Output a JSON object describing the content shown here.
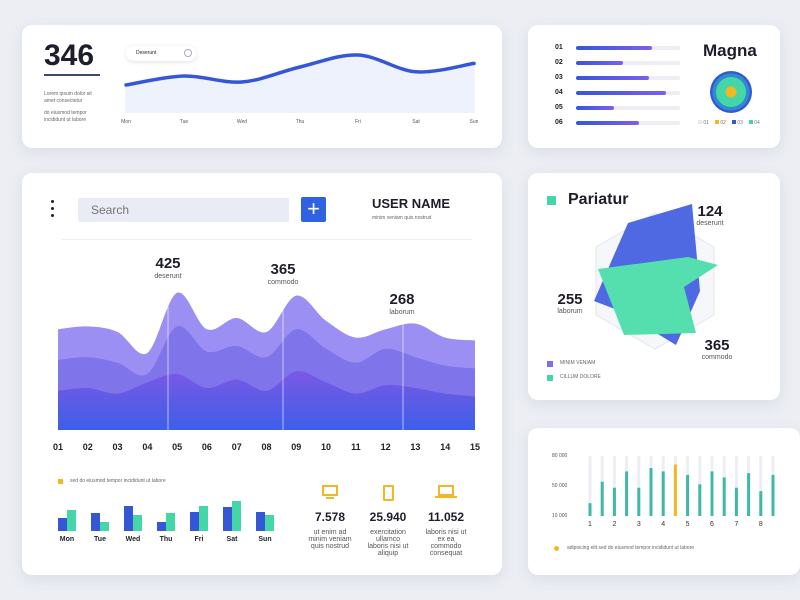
{
  "colors": {
    "blue": "#3557d6",
    "purple": "#7a6ff0",
    "green": "#45d6a8",
    "yellow": "#f2b824",
    "track": "#eceef4"
  },
  "top_left": {
    "value": "346",
    "desc1": "Lorem ipsum dolor sit amet consectetur",
    "desc2": "do eiusmod tempor incididunt ut labore",
    "pill": "Deserunt",
    "days": [
      "Mon",
      "Tue",
      "Wed",
      "Thu",
      "Fri",
      "Sat",
      "Sun"
    ],
    "line_values": [
      30,
      45,
      35,
      60,
      80,
      52,
      66
    ]
  },
  "top_right": {
    "title": "Magna",
    "rows": [
      {
        "label": "01",
        "fill": 0.73
      },
      {
        "label": "02",
        "fill": 0.45
      },
      {
        "label": "03",
        "fill": 0.7
      },
      {
        "label": "04",
        "fill": 0.87
      },
      {
        "label": "05",
        "fill": 0.37
      },
      {
        "label": "06",
        "fill": 0.61
      }
    ],
    "legend": [
      {
        "label": "01",
        "color": "#e6e8ef"
      },
      {
        "label": "02",
        "color": "#f2b824"
      },
      {
        "label": "03",
        "color": "#3557d6"
      },
      {
        "label": "04",
        "color": "#45d6a8"
      }
    ]
  },
  "main": {
    "search_placeholder": "Search",
    "add_label": "+",
    "user_name": "USER NAME",
    "user_sub": "minim veniam quis nostrud",
    "peaks": [
      {
        "value": "425",
        "label": "deserunt"
      },
      {
        "value": "365",
        "label": "commodo"
      },
      {
        "value": "268",
        "label": "laborum"
      }
    ],
    "x_labels": [
      "01",
      "02",
      "03",
      "04",
      "05",
      "06",
      "07",
      "08",
      "09",
      "10",
      "11",
      "12",
      "13",
      "14",
      "15"
    ],
    "area_layers": [
      [
        72,
        74,
        70,
        55,
        98,
        72,
        80,
        70,
        96,
        78,
        66,
        72,
        76,
        66,
        64
      ],
      [
        50,
        52,
        48,
        40,
        74,
        56,
        60,
        52,
        72,
        58,
        48,
        58,
        52,
        46,
        44
      ],
      [
        28,
        30,
        26,
        34,
        40,
        30,
        36,
        28,
        42,
        34,
        26,
        32,
        30,
        26,
        24
      ]
    ],
    "legend_text": "sed do eiusmod tempor incididunt ut labore",
    "week_bars": {
      "days": [
        "Mon",
        "Tue",
        "Wed",
        "Thu",
        "Fri",
        "Sat",
        "Sun"
      ],
      "blue": [
        0.45,
        0.6,
        0.85,
        0.3,
        0.65,
        0.8,
        0.65
      ],
      "green": [
        0.7,
        0.3,
        0.55,
        0.6,
        0.85,
        1.0,
        0.55
      ]
    },
    "stats": [
      {
        "icon": "monitor-icon",
        "value": "7.578",
        "desc": "ut enim ad minim veniam quis nostrud"
      },
      {
        "icon": "tablet-icon",
        "value": "25.940",
        "desc": "exercitation ullamco laboris nisi ut aliquip"
      },
      {
        "icon": "laptop-icon",
        "value": "11.052",
        "desc": "laboris nisi ut ex ea commodo consequat"
      }
    ]
  },
  "radar": {
    "title": "Pariatur",
    "labels": [
      {
        "value": "124",
        "label": "deserunt"
      },
      {
        "value": "255",
        "label": "laborum"
      },
      {
        "value": "365",
        "label": "commodo"
      }
    ],
    "legend": [
      {
        "label": "MINIM VENIAM",
        "color": "#7a6ff0"
      },
      {
        "label": "CILLUM DOLORE",
        "color": "#45d6a8"
      }
    ]
  },
  "bar_chart": {
    "y_ticks": [
      "80 000",
      "50 000",
      "10 000"
    ],
    "x_labels": [
      "1",
      "2",
      "3",
      "4",
      "5",
      "6",
      "7",
      "8"
    ],
    "values": [
      25000,
      50000,
      43000,
      62000,
      43000,
      66000,
      62000,
      70000,
      58000,
      47000,
      62000,
      55000,
      43000,
      60000,
      39000,
      58000
    ],
    "highlight_index": 7,
    "ylim": [
      10000,
      80000
    ],
    "legend_text": "adipiscing elit sed do eiusmod tempor incididunt ut labore"
  }
}
